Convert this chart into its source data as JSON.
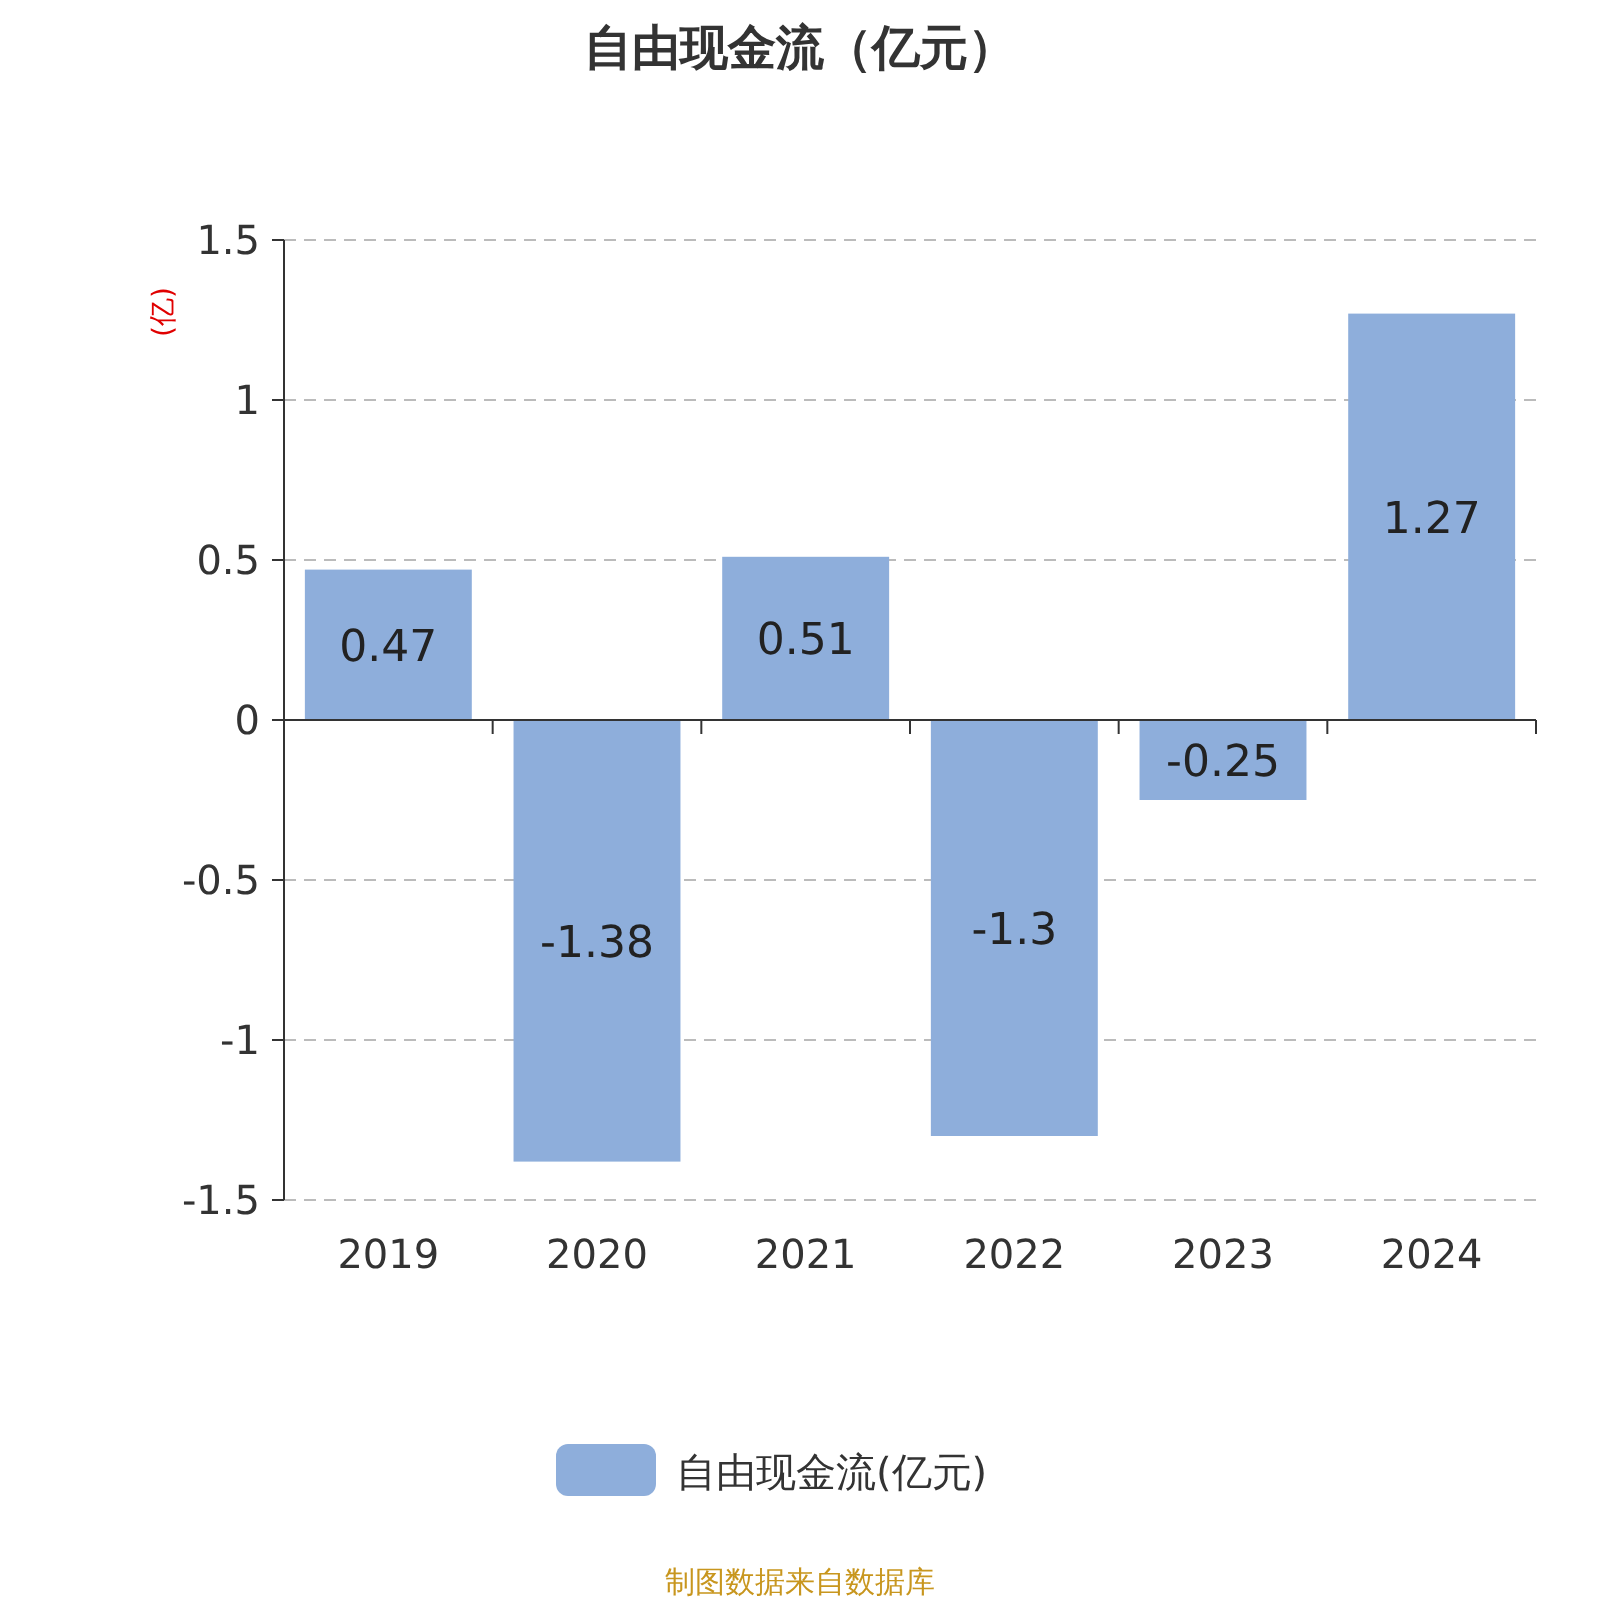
{
  "chart_data": {
    "type": "bar",
    "title": "自由现金流（亿元）",
    "ylabel": "(亿)",
    "categories": [
      "2019",
      "2020",
      "2021",
      "2022",
      "2023",
      "2024"
    ],
    "series": [
      {
        "name": "自由现金流(亿元)",
        "color": "#8eaedb",
        "values": [
          0.47,
          -1.38,
          0.51,
          -1.3,
          -0.25,
          1.27
        ]
      }
    ],
    "ylim": [
      -1.5,
      1.5
    ],
    "yticks": [
      -1.5,
      -1,
      -0.5,
      0,
      0.5,
      1,
      1.5
    ],
    "grid": "y",
    "legend": "bottom",
    "data_labels": true,
    "annotations": [
      "制图数据来自数据库"
    ]
  }
}
